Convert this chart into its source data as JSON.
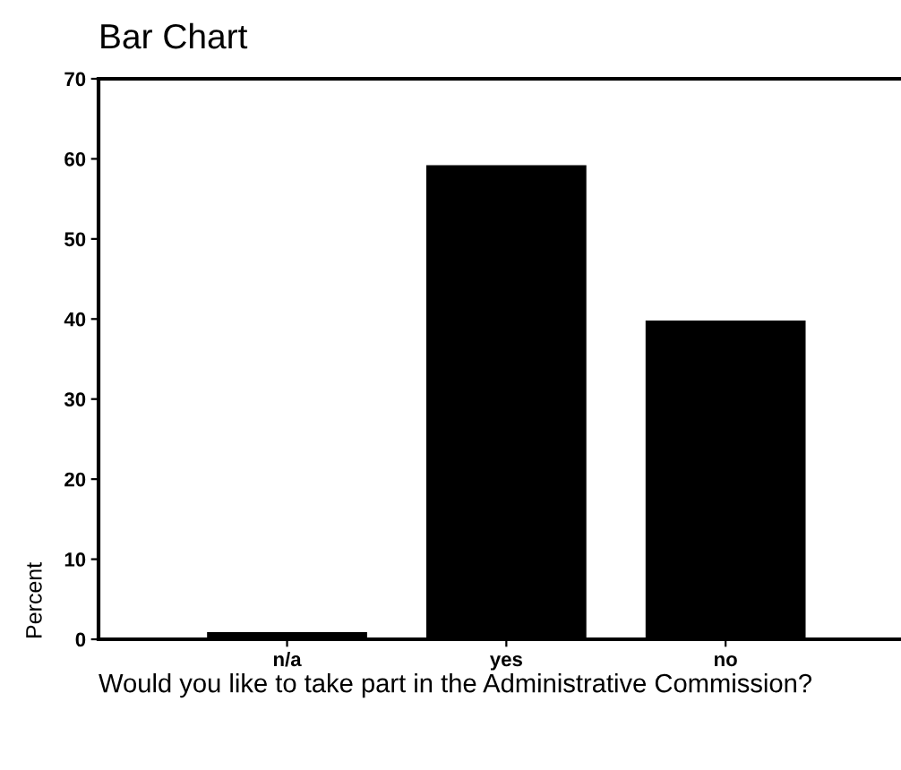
{
  "chart_data": {
    "type": "bar",
    "title": "Bar Chart",
    "xlabel": "Would you like to take part in the Administrative Commission?",
    "ylabel": "Percent",
    "categories": [
      "n/a",
      "yes",
      "no"
    ],
    "values": [
      0.9,
      59.2,
      39.8
    ],
    "color": "#000000",
    "ylim": [
      0,
      70
    ],
    "yticks": [
      0,
      10,
      20,
      30,
      40,
      50,
      60,
      70
    ],
    "grid": false,
    "legend": false
  }
}
